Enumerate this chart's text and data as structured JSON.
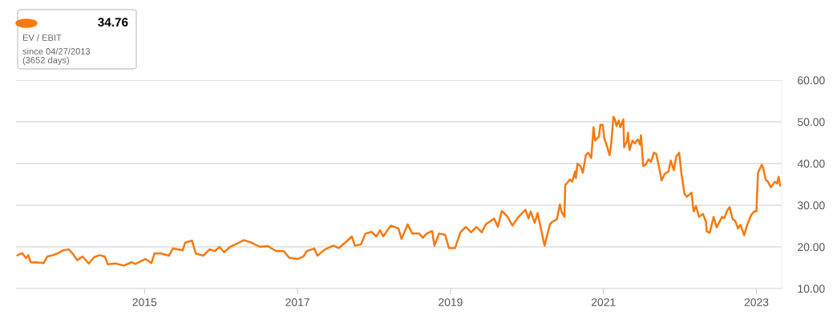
{
  "chart_data": {
    "type": "line",
    "annotations": [
      "34.76",
      "EV / EBIT",
      "since 04/27/2013",
      "(3652 days)"
    ],
    "series": [
      {
        "color": "#f57a10",
        "x": [
          2013.34,
          2013.4,
          2013.45,
          2013.48,
          2013.51,
          2013.58,
          2013.68,
          2013.73,
          2013.8,
          2013.87,
          2013.94,
          2014.01,
          2014.06,
          2014.12,
          2014.19,
          2014.27,
          2014.34,
          2014.41,
          2014.48,
          2014.52,
          2014.62,
          2014.73,
          2014.83,
          2014.88,
          2015.01,
          2015.09,
          2015.13,
          2015.22,
          2015.32,
          2015.37,
          2015.5,
          2015.53,
          2015.62,
          2015.67,
          2015.77,
          2015.85,
          2015.92,
          2015.98,
          2016.04,
          2016.12,
          2016.19,
          2016.3,
          2016.4,
          2016.51,
          2016.61,
          2016.72,
          2016.82,
          2016.89,
          2017.0,
          2017.08,
          2017.12,
          2017.22,
          2017.26,
          2017.36,
          2017.47,
          2017.54,
          2017.64,
          2017.71,
          2017.75,
          2017.83,
          2017.89,
          2017.97,
          2018.03,
          2018.08,
          2018.12,
          2018.22,
          2018.32,
          2018.36,
          2018.44,
          2018.5,
          2018.59,
          2018.64,
          2018.69,
          2018.76,
          2018.79,
          2018.85,
          2018.93,
          2018.98,
          2019.06,
          2019.13,
          2019.2,
          2019.27,
          2019.34,
          2019.41,
          2019.46,
          2019.57,
          2019.62,
          2019.67,
          2019.74,
          2019.81,
          2019.88,
          2019.98,
          2020.02,
          2020.05,
          2020.1,
          2020.14,
          2020.17,
          2020.23,
          2020.3,
          2020.33,
          2020.39,
          2020.43,
          2020.45,
          2020.49,
          2020.5,
          2020.52,
          2020.56,
          2020.59,
          2020.63,
          2020.64,
          2020.66,
          2020.7,
          2020.73,
          2020.77,
          2020.8,
          2020.84,
          2020.87,
          2020.89,
          2020.94,
          2020.96,
          2020.99,
          2021.01,
          2021.05,
          2021.08,
          2021.1,
          2021.13,
          2021.15,
          2021.17,
          2021.2,
          2021.22,
          2021.26,
          2021.27,
          2021.31,
          2021.32,
          2021.34,
          2021.38,
          2021.41,
          2021.45,
          2021.48,
          2021.49,
          2021.52,
          2021.55,
          2021.59,
          2021.62,
          2021.66,
          2021.69,
          2021.73,
          2021.76,
          2021.8,
          2021.85,
          2021.88,
          2021.92,
          2021.95,
          2021.99,
          2022.02,
          2022.06,
          2022.09,
          2022.15,
          2022.18,
          2022.21,
          2022.25,
          2022.3,
          2022.34,
          2022.35,
          2022.39,
          2022.44,
          2022.48,
          2022.55,
          2022.58,
          2022.62,
          2022.65,
          2022.69,
          2022.72,
          2022.76,
          2022.79,
          2022.84,
          2022.88,
          2022.93,
          2022.97,
          2023.0,
          2023.02,
          2023.07,
          2023.09,
          2023.12,
          2023.15,
          2023.19,
          2023.24,
          2023.27,
          2023.29,
          2023.31
        ],
        "values": [
          18.0,
          18.5,
          17.3,
          18.0,
          16.3,
          16.3,
          16.1,
          17.7,
          18.0,
          18.5,
          19.2,
          19.4,
          18.4,
          16.8,
          17.7,
          16.0,
          17.5,
          18.0,
          17.7,
          15.8,
          16.0,
          15.5,
          16.3,
          15.9,
          17.1,
          16.1,
          18.4,
          18.4,
          17.9,
          19.6,
          19.2,
          21.0,
          21.5,
          18.4,
          17.9,
          19.4,
          19.0,
          20.0,
          18.7,
          20.0,
          20.6,
          21.6,
          21.0,
          20.0,
          20.2,
          19.0,
          19.0,
          17.4,
          17.1,
          17.7,
          19.0,
          19.6,
          17.9,
          19.4,
          20.3,
          19.7,
          21.3,
          22.5,
          20.3,
          20.6,
          23.2,
          23.6,
          22.5,
          24.0,
          22.5,
          25.1,
          24.4,
          21.9,
          25.4,
          23.2,
          23.2,
          22.2,
          23.2,
          23.8,
          20.3,
          23.2,
          22.9,
          19.7,
          19.7,
          23.5,
          24.8,
          23.5,
          24.8,
          23.5,
          25.4,
          26.8,
          24.8,
          28.6,
          27.4,
          25.1,
          27.0,
          28.9,
          26.8,
          28.5,
          25.8,
          28.1,
          25.4,
          20.3,
          25.4,
          26.0,
          26.6,
          30.2,
          28.5,
          27.2,
          34.9,
          35.2,
          36.2,
          35.6,
          38.1,
          36.5,
          40.0,
          39.4,
          37.8,
          42.0,
          42.6,
          41.3,
          48.7,
          45.5,
          46.4,
          49.3,
          49.3,
          46.1,
          43.9,
          42.0,
          44.5,
          51.2,
          50.6,
          49.0,
          50.3,
          48.7,
          50.6,
          43.9,
          45.5,
          47.4,
          43.2,
          45.5,
          44.8,
          45.8,
          44.5,
          46.8,
          39.4,
          39.7,
          41.0,
          40.4,
          42.6,
          42.3,
          38.8,
          35.9,
          37.5,
          38.1,
          40.7,
          38.4,
          41.6,
          42.6,
          37.5,
          32.7,
          32.0,
          33.0,
          28.5,
          29.8,
          27.2,
          27.9,
          26.0,
          23.7,
          23.4,
          27.2,
          24.7,
          27.2,
          26.9,
          28.8,
          29.5,
          26.6,
          26.3,
          24.4,
          25.3,
          22.8,
          25.3,
          27.6,
          28.5,
          28.5,
          37.8,
          39.7,
          38.8,
          36.2,
          35.6,
          34.3,
          35.6,
          35.2,
          36.8,
          34.76
        ]
      }
    ],
    "xlim": [
      2013.32,
      2023.33
    ],
    "xticks": [
      2015,
      2017,
      2019,
      2021,
      2023
    ],
    "ylim": [
      10,
      60
    ],
    "yticks": [
      {
        "value": 10,
        "label": "10.00"
      },
      {
        "value": 20,
        "label": "20.00"
      },
      {
        "value": 30,
        "label": "30.00"
      },
      {
        "value": 40,
        "label": "40.00"
      },
      {
        "value": 50,
        "label": "50.00"
      },
      {
        "value": 60,
        "label": "60.00"
      }
    ],
    "grid": "y"
  }
}
